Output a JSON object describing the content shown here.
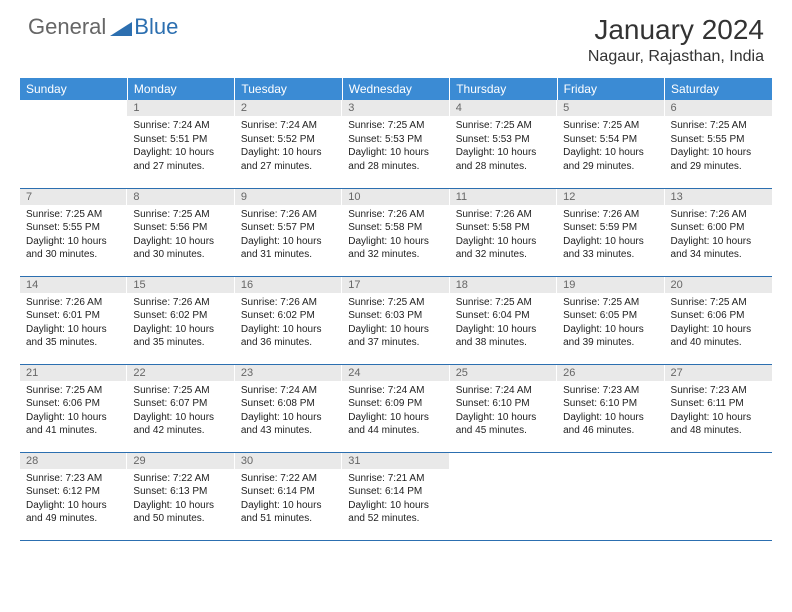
{
  "brand": {
    "part1": "General",
    "part2": "Blue"
  },
  "title": "January 2024",
  "location": "Nagaur, Rajasthan, India",
  "colors": {
    "headerBg": "#3b8bd4",
    "dayBar": "#e9e9e9",
    "rowBorder": "#2c6fb0"
  },
  "dayNames": [
    "Sunday",
    "Monday",
    "Tuesday",
    "Wednesday",
    "Thursday",
    "Friday",
    "Saturday"
  ],
  "weeks": [
    [
      null,
      {
        "n": "1",
        "sunrise": "7:24 AM",
        "sunset": "5:51 PM",
        "daylight": "10 hours and 27 minutes."
      },
      {
        "n": "2",
        "sunrise": "7:24 AM",
        "sunset": "5:52 PM",
        "daylight": "10 hours and 27 minutes."
      },
      {
        "n": "3",
        "sunrise": "7:25 AM",
        "sunset": "5:53 PM",
        "daylight": "10 hours and 28 minutes."
      },
      {
        "n": "4",
        "sunrise": "7:25 AM",
        "sunset": "5:53 PM",
        "daylight": "10 hours and 28 minutes."
      },
      {
        "n": "5",
        "sunrise": "7:25 AM",
        "sunset": "5:54 PM",
        "daylight": "10 hours and 29 minutes."
      },
      {
        "n": "6",
        "sunrise": "7:25 AM",
        "sunset": "5:55 PM",
        "daylight": "10 hours and 29 minutes."
      }
    ],
    [
      {
        "n": "7",
        "sunrise": "7:25 AM",
        "sunset": "5:55 PM",
        "daylight": "10 hours and 30 minutes."
      },
      {
        "n": "8",
        "sunrise": "7:25 AM",
        "sunset": "5:56 PM",
        "daylight": "10 hours and 30 minutes."
      },
      {
        "n": "9",
        "sunrise": "7:26 AM",
        "sunset": "5:57 PM",
        "daylight": "10 hours and 31 minutes."
      },
      {
        "n": "10",
        "sunrise": "7:26 AM",
        "sunset": "5:58 PM",
        "daylight": "10 hours and 32 minutes."
      },
      {
        "n": "11",
        "sunrise": "7:26 AM",
        "sunset": "5:58 PM",
        "daylight": "10 hours and 32 minutes."
      },
      {
        "n": "12",
        "sunrise": "7:26 AM",
        "sunset": "5:59 PM",
        "daylight": "10 hours and 33 minutes."
      },
      {
        "n": "13",
        "sunrise": "7:26 AM",
        "sunset": "6:00 PM",
        "daylight": "10 hours and 34 minutes."
      }
    ],
    [
      {
        "n": "14",
        "sunrise": "7:26 AM",
        "sunset": "6:01 PM",
        "daylight": "10 hours and 35 minutes."
      },
      {
        "n": "15",
        "sunrise": "7:26 AM",
        "sunset": "6:02 PM",
        "daylight": "10 hours and 35 minutes."
      },
      {
        "n": "16",
        "sunrise": "7:26 AM",
        "sunset": "6:02 PM",
        "daylight": "10 hours and 36 minutes."
      },
      {
        "n": "17",
        "sunrise": "7:25 AM",
        "sunset": "6:03 PM",
        "daylight": "10 hours and 37 minutes."
      },
      {
        "n": "18",
        "sunrise": "7:25 AM",
        "sunset": "6:04 PM",
        "daylight": "10 hours and 38 minutes."
      },
      {
        "n": "19",
        "sunrise": "7:25 AM",
        "sunset": "6:05 PM",
        "daylight": "10 hours and 39 minutes."
      },
      {
        "n": "20",
        "sunrise": "7:25 AM",
        "sunset": "6:06 PM",
        "daylight": "10 hours and 40 minutes."
      }
    ],
    [
      {
        "n": "21",
        "sunrise": "7:25 AM",
        "sunset": "6:06 PM",
        "daylight": "10 hours and 41 minutes."
      },
      {
        "n": "22",
        "sunrise": "7:25 AM",
        "sunset": "6:07 PM",
        "daylight": "10 hours and 42 minutes."
      },
      {
        "n": "23",
        "sunrise": "7:24 AM",
        "sunset": "6:08 PM",
        "daylight": "10 hours and 43 minutes."
      },
      {
        "n": "24",
        "sunrise": "7:24 AM",
        "sunset": "6:09 PM",
        "daylight": "10 hours and 44 minutes."
      },
      {
        "n": "25",
        "sunrise": "7:24 AM",
        "sunset": "6:10 PM",
        "daylight": "10 hours and 45 minutes."
      },
      {
        "n": "26",
        "sunrise": "7:23 AM",
        "sunset": "6:10 PM",
        "daylight": "10 hours and 46 minutes."
      },
      {
        "n": "27",
        "sunrise": "7:23 AM",
        "sunset": "6:11 PM",
        "daylight": "10 hours and 48 minutes."
      }
    ],
    [
      {
        "n": "28",
        "sunrise": "7:23 AM",
        "sunset": "6:12 PM",
        "daylight": "10 hours and 49 minutes."
      },
      {
        "n": "29",
        "sunrise": "7:22 AM",
        "sunset": "6:13 PM",
        "daylight": "10 hours and 50 minutes."
      },
      {
        "n": "30",
        "sunrise": "7:22 AM",
        "sunset": "6:14 PM",
        "daylight": "10 hours and 51 minutes."
      },
      {
        "n": "31",
        "sunrise": "7:21 AM",
        "sunset": "6:14 PM",
        "daylight": "10 hours and 52 minutes."
      },
      null,
      null,
      null
    ]
  ],
  "labels": {
    "sunrise": "Sunrise:",
    "sunset": "Sunset:",
    "daylight": "Daylight:"
  }
}
